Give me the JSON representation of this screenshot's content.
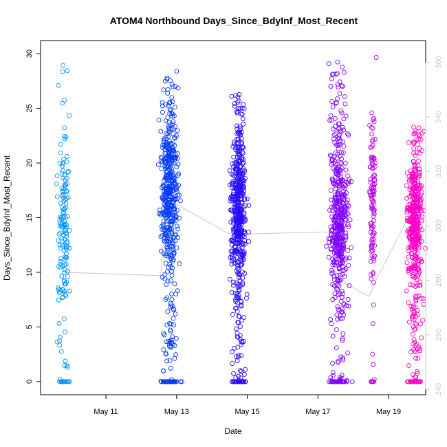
{
  "chart_data": {
    "type": "scatter",
    "title": "ATOM4 Northbound Days_Since_BdyInf_Most_Recent",
    "xlabel": "Date",
    "ylabel": "Days_Since_BdyInf_Most_Recent",
    "x_tick_labels": [
      "May 11",
      "May 13",
      "May 15",
      "May 17",
      "May 19"
    ],
    "x_tick_values": [
      11,
      13,
      15,
      17,
      19
    ],
    "xlim": [
      9.15,
      20.05
    ],
    "ylim": [
      -1.2,
      31.2
    ],
    "y_ticks": [
      0,
      5,
      10,
      15,
      20,
      25,
      30
    ],
    "right_axis": {
      "ylim": [
        238,
        368
      ],
      "ticks": [
        240,
        260,
        280,
        300,
        320,
        340,
        360
      ],
      "color": "#c8c8c8"
    },
    "grid": false,
    "legend": "none",
    "marker": "open-circle",
    "color_gradient": [
      "#00a0ff",
      "#0040ff",
      "#3000ff",
      "#9000ff",
      "#ff00c8"
    ],
    "clusters": [
      {
        "date": 9.8,
        "spread": 0.18,
        "count": 170,
        "range": [
          0,
          30
        ],
        "center": 14,
        "gradient_t": 0.0
      },
      {
        "date": 12.8,
        "spread": 0.26,
        "count": 520,
        "range": [
          0,
          28.5
        ],
        "center": 17,
        "gradient_t": 0.25
      },
      {
        "date": 14.75,
        "spread": 0.22,
        "count": 560,
        "range": [
          0,
          26.5
        ],
        "center": 16,
        "gradient_t": 0.42
      },
      {
        "date": 17.6,
        "spread": 0.28,
        "count": 520,
        "range": [
          0,
          29.5
        ],
        "center": 15,
        "gradient_t": 0.7
      },
      {
        "date": 18.55,
        "spread": 0.08,
        "count": 120,
        "range": [
          0,
          30
        ],
        "center": 17,
        "gradient_t": 0.82
      },
      {
        "date": 19.75,
        "spread": 0.22,
        "count": 480,
        "range": [
          0,
          23.5
        ],
        "center": 15,
        "gradient_t": 1.0
      }
    ],
    "trend_line": {
      "color": "#c8c8c8",
      "points": [
        [
          9.85,
          10.0
        ],
        [
          12.55,
          9.7
        ],
        [
          12.7,
          16.0
        ],
        [
          12.95,
          16.3
        ],
        [
          14.5,
          13.5
        ],
        [
          14.85,
          13.5
        ],
        [
          17.35,
          13.7
        ],
        [
          17.75,
          9.0
        ],
        [
          18.45,
          7.8
        ],
        [
          18.65,
          9.3
        ],
        [
          19.55,
          15.0
        ],
        [
          19.85,
          15.8
        ]
      ]
    }
  }
}
